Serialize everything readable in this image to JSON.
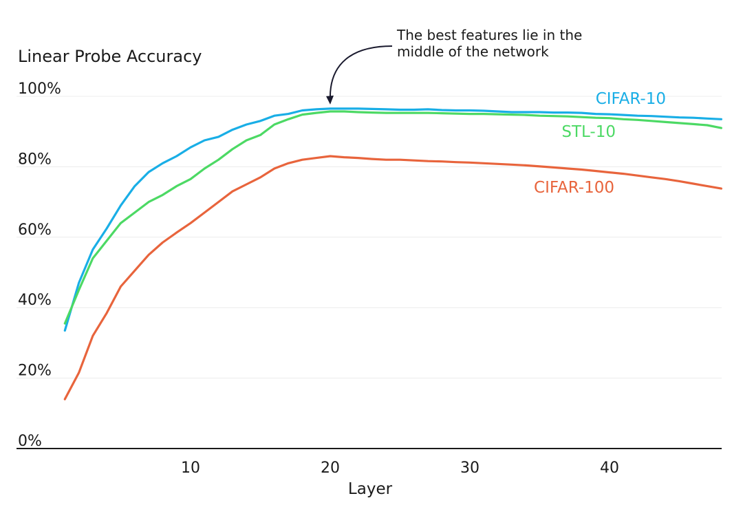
{
  "chart_data": {
    "type": "line",
    "title": "",
    "xlabel": "Layer",
    "ylabel": "Linear Probe Accuracy",
    "xlim": [
      0,
      48
    ],
    "ylim": [
      0,
      100
    ],
    "x_ticks": [
      10,
      20,
      30,
      40
    ],
    "y_ticks": [
      0,
      20,
      40,
      60,
      80,
      100
    ],
    "y_tick_labels": [
      "0%",
      "20%",
      "40%",
      "60%",
      "80%",
      "100%"
    ],
    "grid": "horizontal",
    "legend": "inline labels at right end of lines",
    "annotation": {
      "lines": [
        "The best features lie in the",
        "middle of the network"
      ],
      "points_to": {
        "x": 20,
        "y": 96.5
      }
    },
    "series": [
      {
        "name": "CIFAR-10",
        "color": "#19aee6",
        "x": [
          1,
          2,
          3,
          4,
          5,
          6,
          7,
          8,
          9,
          10,
          11,
          12,
          13,
          14,
          15,
          16,
          17,
          18,
          19,
          20,
          21,
          22,
          23,
          24,
          25,
          26,
          27,
          28,
          29,
          30,
          31,
          32,
          33,
          34,
          35,
          36,
          37,
          38,
          39,
          40,
          41,
          42,
          43,
          44,
          45,
          46,
          47,
          48
        ],
        "values": [
          33.5,
          47,
          56.5,
          62.5,
          69,
          74.5,
          78.5,
          81,
          83,
          85.5,
          87.5,
          88.5,
          90.5,
          92,
          93,
          94.5,
          95,
          96,
          96.3,
          96.5,
          96.5,
          96.5,
          96.4,
          96.3,
          96.2,
          96.2,
          96.3,
          96.1,
          96,
          96,
          95.9,
          95.7,
          95.5,
          95.5,
          95.5,
          95.4,
          95.4,
          95.3,
          95,
          94.9,
          94.7,
          94.5,
          94.4,
          94.2,
          94,
          93.9,
          93.7,
          93.5
        ]
      },
      {
        "name": "STL-10",
        "color": "#4cd964",
        "x": [
          1,
          2,
          3,
          4,
          5,
          6,
          7,
          8,
          9,
          10,
          11,
          12,
          13,
          14,
          15,
          16,
          17,
          18,
          19,
          20,
          21,
          22,
          23,
          24,
          25,
          26,
          27,
          28,
          29,
          30,
          31,
          32,
          33,
          34,
          35,
          36,
          37,
          38,
          39,
          40,
          41,
          42,
          43,
          44,
          45,
          46,
          47,
          48
        ],
        "values": [
          35.5,
          45,
          54,
          59,
          64,
          67,
          70,
          72,
          74.5,
          76.5,
          79.5,
          82,
          85,
          87.5,
          89,
          92,
          93.5,
          94.8,
          95.3,
          95.7,
          95.7,
          95.5,
          95.4,
          95.3,
          95.3,
          95.3,
          95.3,
          95.2,
          95.1,
          95,
          95,
          94.9,
          94.8,
          94.7,
          94.5,
          94.4,
          94.3,
          94.1,
          93.9,
          93.8,
          93.5,
          93.3,
          93,
          92.7,
          92.4,
          92.1,
          91.8,
          91
        ]
      },
      {
        "name": "CIFAR-100",
        "color": "#e8643c",
        "x": [
          1,
          2,
          3,
          4,
          5,
          6,
          7,
          8,
          9,
          10,
          11,
          12,
          13,
          14,
          15,
          16,
          17,
          18,
          19,
          20,
          21,
          22,
          23,
          24,
          25,
          26,
          27,
          28,
          29,
          30,
          31,
          32,
          33,
          34,
          35,
          36,
          37,
          38,
          39,
          40,
          41,
          42,
          43,
          44,
          45,
          46,
          47,
          48
        ],
        "values": [
          14,
          21.5,
          32,
          38.5,
          46,
          50.5,
          55,
          58.5,
          61.3,
          64,
          67,
          70,
          73,
          75,
          77,
          79.5,
          81,
          82,
          82.5,
          83,
          82.7,
          82.5,
          82.2,
          82,
          82,
          81.8,
          81.6,
          81.5,
          81.3,
          81.2,
          81,
          80.8,
          80.6,
          80.4,
          80.1,
          79.8,
          79.5,
          79.2,
          78.8,
          78.4,
          78,
          77.5,
          77,
          76.5,
          75.9,
          75.2,
          74.5,
          73.8
        ]
      }
    ]
  }
}
